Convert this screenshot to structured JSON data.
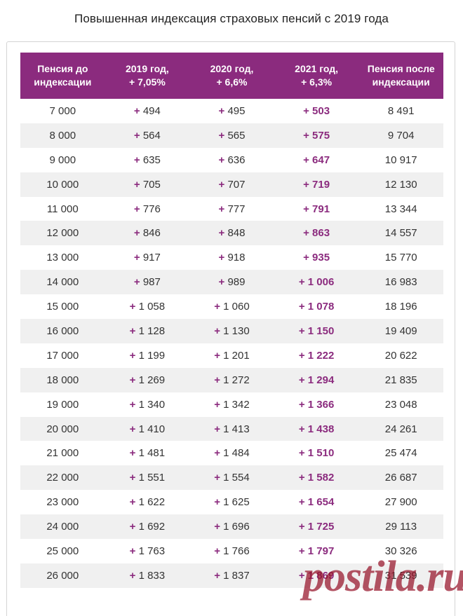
{
  "title": "Повышенная индексация страховых пенсий с 2019 года",
  "colors": {
    "accent": "#8b2b7e",
    "header_bg": "#8b2b7e",
    "stripe": "#f0f0f0",
    "watermark": "#961228"
  },
  "table": {
    "headers": [
      [
        "Пенсия до",
        "индексации"
      ],
      [
        "2019 год,",
        "+ 7,05%"
      ],
      [
        "2020 год,",
        "+ 6,6%"
      ],
      [
        "2021 год,",
        "+ 6,3%"
      ],
      [
        "Пенсия после",
        "индексации"
      ]
    ],
    "plus_sign": "+",
    "rows": [
      [
        "7 000",
        "494",
        "495",
        "503",
        "8 491"
      ],
      [
        "8 000",
        "564",
        "565",
        "575",
        "9 704"
      ],
      [
        "9 000",
        "635",
        "636",
        "647",
        "10 917"
      ],
      [
        "10 000",
        "705",
        "707",
        "719",
        "12 130"
      ],
      [
        "11 000",
        "776",
        "777",
        "791",
        "13 344"
      ],
      [
        "12 000",
        "846",
        "848",
        "863",
        "14 557"
      ],
      [
        "13 000",
        "917",
        "918",
        "935",
        "15 770"
      ],
      [
        "14 000",
        "987",
        "989",
        "1 006",
        "16 983"
      ],
      [
        "15 000",
        "1 058",
        "1 060",
        "1 078",
        "18 196"
      ],
      [
        "16 000",
        "1 128",
        "1 130",
        "1 150",
        "19 409"
      ],
      [
        "17 000",
        "1 199",
        "1 201",
        "1 222",
        "20 622"
      ],
      [
        "18 000",
        "1 269",
        "1 272",
        "1 294",
        "21 835"
      ],
      [
        "19 000",
        "1 340",
        "1 342",
        "1 366",
        "23 048"
      ],
      [
        "20 000",
        "1 410",
        "1 413",
        "1 438",
        "24 261"
      ],
      [
        "21 000",
        "1 481",
        "1 484",
        "1 510",
        "25 474"
      ],
      [
        "22 000",
        "1 551",
        "1 554",
        "1 582",
        "26 687"
      ],
      [
        "23 000",
        "1 622",
        "1 625",
        "1 654",
        "27 900"
      ],
      [
        "24 000",
        "1 692",
        "1 696",
        "1 725",
        "29 113"
      ],
      [
        "25 000",
        "1 763",
        "1 766",
        "1 797",
        "30 326"
      ],
      [
        "26 000",
        "1 833",
        "1 837",
        "1 869",
        "31 539"
      ]
    ]
  },
  "watermark": "postila.ru"
}
